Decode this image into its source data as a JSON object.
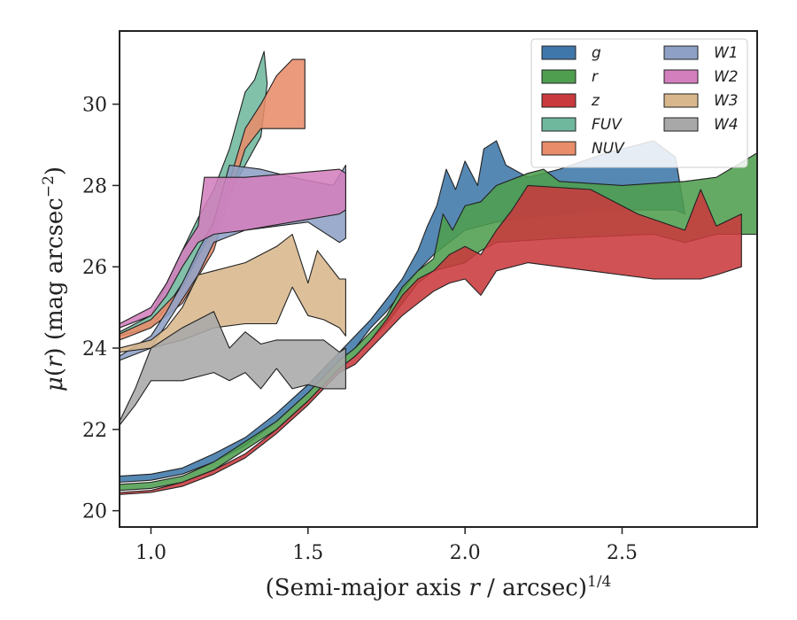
{
  "chart_data": {
    "type": "area",
    "xlabel": "(Semi-major axis r / arcsec)^{1/4}",
    "ylabel": "μ(r) (mag arcsec^{−2})",
    "xlim": [
      0.9,
      2.93
    ],
    "ylim": [
      31.8,
      19.6
    ],
    "y_inverted": true,
    "xticks": [
      1.0,
      1.5,
      2.0,
      2.5
    ],
    "xtick_labels": [
      "1.0",
      "1.5",
      "2.0",
      "2.5"
    ],
    "yticks": [
      20,
      22,
      24,
      26,
      28,
      30
    ],
    "ytick_labels": [
      "20",
      "22",
      "24",
      "26",
      "28",
      "30"
    ],
    "grid": false,
    "legend": {
      "position": "top-right",
      "columns": 2
    },
    "series": [
      {
        "name": "g",
        "color": "#3f77aa",
        "upper": [
          [
            0.9,
            20.7
          ],
          [
            1.0,
            20.75
          ],
          [
            1.1,
            20.9
          ],
          [
            1.2,
            21.2
          ],
          [
            1.3,
            21.6
          ],
          [
            1.4,
            22.2
          ],
          [
            1.5,
            22.9
          ],
          [
            1.55,
            23.3
          ],
          [
            1.6,
            23.7
          ],
          [
            1.65,
            24.0
          ],
          [
            1.7,
            24.5
          ],
          [
            1.75,
            24.9
          ],
          [
            1.8,
            25.4
          ],
          [
            1.85,
            25.9
          ],
          [
            1.9,
            26.3
          ],
          [
            1.95,
            26.6
          ],
          [
            2.0,
            26.9
          ],
          [
            2.1,
            27.1
          ],
          [
            2.2,
            27.2
          ],
          [
            2.3,
            27.3
          ],
          [
            2.5,
            27.4
          ],
          [
            2.67,
            27.4
          ]
        ],
        "lower": [
          [
            0.9,
            20.85
          ],
          [
            1.0,
            20.9
          ],
          [
            1.1,
            21.05
          ],
          [
            1.2,
            21.4
          ],
          [
            1.3,
            21.8
          ],
          [
            1.4,
            22.4
          ],
          [
            1.5,
            23.1
          ],
          [
            1.55,
            23.5
          ],
          [
            1.6,
            23.9
          ],
          [
            1.65,
            24.3
          ],
          [
            1.7,
            24.7
          ],
          [
            1.75,
            25.2
          ],
          [
            1.8,
            25.7
          ],
          [
            1.85,
            26.4
          ],
          [
            1.88,
            27.0
          ],
          [
            1.91,
            27.5
          ],
          [
            1.94,
            28.4
          ],
          [
            1.97,
            27.9
          ],
          [
            2.0,
            28.6
          ],
          [
            2.04,
            28.0
          ],
          [
            2.06,
            28.9
          ],
          [
            2.1,
            29.1
          ],
          [
            2.13,
            28.5
          ],
          [
            2.2,
            28.2
          ],
          [
            2.3,
            28.4
          ],
          [
            2.45,
            28.8
          ],
          [
            2.6,
            29.1
          ],
          [
            2.67,
            28.7
          ],
          [
            2.7,
            27.3
          ]
        ]
      },
      {
        "name": "r",
        "color": "#4f9e4f",
        "upper": [
          [
            0.9,
            20.5
          ],
          [
            1.0,
            20.55
          ],
          [
            1.1,
            20.7
          ],
          [
            1.2,
            21.0
          ],
          [
            1.3,
            21.5
          ],
          [
            1.4,
            22.0
          ],
          [
            1.5,
            22.7
          ],
          [
            1.55,
            23.1
          ],
          [
            1.6,
            23.5
          ],
          [
            1.65,
            23.8
          ],
          [
            1.7,
            24.2
          ],
          [
            1.75,
            24.6
          ],
          [
            1.8,
            25.1
          ],
          [
            1.85,
            25.6
          ],
          [
            1.9,
            25.9
          ],
          [
            1.95,
            26.0
          ],
          [
            2.0,
            26.1
          ],
          [
            2.05,
            26.4
          ],
          [
            2.1,
            26.6
          ],
          [
            2.3,
            26.7
          ],
          [
            2.6,
            26.8
          ],
          [
            2.7,
            26.6
          ],
          [
            2.8,
            26.8
          ],
          [
            2.93,
            26.8
          ]
        ],
        "lower": [
          [
            0.9,
            20.65
          ],
          [
            1.0,
            20.7
          ],
          [
            1.1,
            20.85
          ],
          [
            1.2,
            21.2
          ],
          [
            1.3,
            21.7
          ],
          [
            1.4,
            22.2
          ],
          [
            1.5,
            22.9
          ],
          [
            1.55,
            23.3
          ],
          [
            1.6,
            23.7
          ],
          [
            1.65,
            24.0
          ],
          [
            1.7,
            24.4
          ],
          [
            1.75,
            24.8
          ],
          [
            1.8,
            25.5
          ],
          [
            1.85,
            25.9
          ],
          [
            1.9,
            26.2
          ],
          [
            1.93,
            27.3
          ],
          [
            1.96,
            26.9
          ],
          [
            2.0,
            27.5
          ],
          [
            2.05,
            27.6
          ],
          [
            2.1,
            28.0
          ],
          [
            2.2,
            28.3
          ],
          [
            2.25,
            28.4
          ],
          [
            2.3,
            28.1
          ],
          [
            2.5,
            28.0
          ],
          [
            2.7,
            28.1
          ],
          [
            2.8,
            28.2
          ],
          [
            2.93,
            28.8
          ]
        ]
      },
      {
        "name": "z",
        "color": "#c93a3e",
        "upper": [
          [
            0.9,
            20.4
          ],
          [
            1.0,
            20.45
          ],
          [
            1.1,
            20.6
          ],
          [
            1.2,
            20.9
          ],
          [
            1.3,
            21.3
          ],
          [
            1.4,
            21.9
          ],
          [
            1.5,
            22.6
          ],
          [
            1.55,
            23.0
          ],
          [
            1.6,
            23.4
          ],
          [
            1.65,
            23.6
          ],
          [
            1.7,
            24.0
          ],
          [
            1.75,
            24.4
          ],
          [
            1.8,
            24.8
          ],
          [
            1.85,
            25.1
          ],
          [
            1.9,
            25.4
          ],
          [
            1.95,
            25.6
          ],
          [
            2.0,
            25.7
          ],
          [
            2.05,
            25.3
          ],
          [
            2.1,
            25.9
          ],
          [
            2.2,
            26.1
          ],
          [
            2.4,
            25.9
          ],
          [
            2.6,
            25.7
          ],
          [
            2.75,
            25.7
          ],
          [
            2.8,
            25.8
          ],
          [
            2.88,
            26.0
          ]
        ],
        "lower": [
          [
            0.9,
            20.45
          ],
          [
            1.0,
            20.5
          ],
          [
            1.1,
            20.7
          ],
          [
            1.2,
            21.0
          ],
          [
            1.3,
            21.4
          ],
          [
            1.4,
            22.0
          ],
          [
            1.5,
            22.7
          ],
          [
            1.55,
            23.1
          ],
          [
            1.6,
            23.5
          ],
          [
            1.65,
            23.8
          ],
          [
            1.7,
            24.2
          ],
          [
            1.75,
            24.7
          ],
          [
            1.8,
            25.3
          ],
          [
            1.85,
            25.7
          ],
          [
            1.9,
            25.9
          ],
          [
            1.95,
            26.3
          ],
          [
            2.0,
            26.5
          ],
          [
            2.05,
            26.3
          ],
          [
            2.1,
            26.9
          ],
          [
            2.15,
            27.4
          ],
          [
            2.2,
            28.0
          ],
          [
            2.4,
            27.9
          ],
          [
            2.55,
            27.3
          ],
          [
            2.7,
            26.9
          ],
          [
            2.75,
            27.9
          ],
          [
            2.8,
            27.0
          ],
          [
            2.88,
            27.3
          ]
        ]
      },
      {
        "name": "FUV",
        "color": "#6fb89e",
        "upper": [
          [
            0.9,
            24.3
          ],
          [
            1.0,
            24.5
          ],
          [
            1.05,
            25.0
          ],
          [
            1.1,
            25.6
          ],
          [
            1.15,
            26.3
          ],
          [
            1.2,
            26.8
          ],
          [
            1.25,
            27.8
          ],
          [
            1.3,
            28.5
          ],
          [
            1.35,
            29.2
          ],
          [
            1.37,
            30.5
          ]
        ],
        "lower": [
          [
            0.9,
            24.4
          ],
          [
            1.0,
            24.8
          ],
          [
            1.05,
            25.6
          ],
          [
            1.1,
            26.4
          ],
          [
            1.15,
            27.2
          ],
          [
            1.2,
            27.9
          ],
          [
            1.25,
            28.9
          ],
          [
            1.3,
            30.3
          ],
          [
            1.33,
            30.6
          ],
          [
            1.36,
            31.3
          ]
        ]
      },
      {
        "name": "NUV",
        "color": "#e88c6a",
        "upper": [
          [
            0.9,
            24.2
          ],
          [
            1.0,
            24.5
          ],
          [
            1.1,
            25.1
          ],
          [
            1.2,
            26.4
          ],
          [
            1.25,
            27.7
          ],
          [
            1.3,
            28.9
          ],
          [
            1.35,
            29.4
          ],
          [
            1.45,
            29.4
          ],
          [
            1.49,
            29.4
          ]
        ],
        "lower": [
          [
            0.9,
            24.35
          ],
          [
            1.0,
            24.7
          ],
          [
            1.1,
            25.5
          ],
          [
            1.2,
            27.0
          ],
          [
            1.25,
            28.1
          ],
          [
            1.3,
            29.4
          ],
          [
            1.35,
            30.0
          ],
          [
            1.4,
            30.7
          ],
          [
            1.45,
            31.1
          ],
          [
            1.49,
            31.1
          ]
        ]
      },
      {
        "name": "W1",
        "color": "#8ea0c6",
        "upper": [
          [
            0.9,
            23.7
          ],
          [
            1.0,
            24.0
          ],
          [
            1.05,
            24.6
          ],
          [
            1.1,
            25.2
          ],
          [
            1.15,
            25.8
          ],
          [
            1.2,
            26.6
          ],
          [
            1.3,
            26.9
          ],
          [
            1.4,
            27.0
          ],
          [
            1.5,
            27.1
          ],
          [
            1.6,
            26.6
          ],
          [
            1.62,
            26.7
          ]
        ],
        "lower": [
          [
            0.9,
            23.8
          ],
          [
            1.0,
            24.3
          ],
          [
            1.05,
            24.9
          ],
          [
            1.1,
            25.6
          ],
          [
            1.15,
            26.4
          ],
          [
            1.2,
            27.1
          ],
          [
            1.25,
            28.5
          ],
          [
            1.35,
            28.4
          ],
          [
            1.45,
            28.2
          ],
          [
            1.58,
            28.0
          ],
          [
            1.62,
            28.5
          ]
        ]
      },
      {
        "name": "W2",
        "color": "#d37fbd",
        "upper": [
          [
            0.9,
            24.5
          ],
          [
            1.0,
            24.8
          ],
          [
            1.05,
            25.3
          ],
          [
            1.1,
            26.0
          ],
          [
            1.15,
            26.6
          ],
          [
            1.2,
            26.8
          ],
          [
            1.3,
            26.9
          ],
          [
            1.45,
            27.1
          ],
          [
            1.6,
            27.3
          ],
          [
            1.62,
            27.4
          ]
        ],
        "lower": [
          [
            0.9,
            24.6
          ],
          [
            1.0,
            25.0
          ],
          [
            1.05,
            25.6
          ],
          [
            1.1,
            26.4
          ],
          [
            1.15,
            27.0
          ],
          [
            1.17,
            28.2
          ],
          [
            1.3,
            28.2
          ],
          [
            1.45,
            28.3
          ],
          [
            1.6,
            28.4
          ],
          [
            1.62,
            28.3
          ]
        ]
      },
      {
        "name": "W3",
        "color": "#d8b78c",
        "upper": [
          [
            0.9,
            23.9
          ],
          [
            1.0,
            24.0
          ],
          [
            1.05,
            24.1
          ],
          [
            1.1,
            24.2
          ],
          [
            1.2,
            24.5
          ],
          [
            1.3,
            24.6
          ],
          [
            1.4,
            24.6
          ],
          [
            1.45,
            25.5
          ],
          [
            1.5,
            24.8
          ],
          [
            1.55,
            24.7
          ],
          [
            1.6,
            24.5
          ],
          [
            1.62,
            24.3
          ]
        ],
        "lower": [
          [
            0.9,
            24.0
          ],
          [
            1.0,
            24.2
          ],
          [
            1.05,
            24.5
          ],
          [
            1.1,
            25.0
          ],
          [
            1.15,
            25.8
          ],
          [
            1.2,
            25.9
          ],
          [
            1.3,
            26.1
          ],
          [
            1.4,
            26.5
          ],
          [
            1.45,
            26.8
          ],
          [
            1.5,
            25.6
          ],
          [
            1.53,
            26.4
          ],
          [
            1.6,
            25.7
          ],
          [
            1.62,
            25.7
          ]
        ]
      },
      {
        "name": "W4",
        "color": "#a8a8a8",
        "upper": [
          [
            0.9,
            22.1
          ],
          [
            0.95,
            22.6
          ],
          [
            1.0,
            23.2
          ],
          [
            1.1,
            23.2
          ],
          [
            1.2,
            23.4
          ],
          [
            1.25,
            23.2
          ],
          [
            1.3,
            23.4
          ],
          [
            1.35,
            23.0
          ],
          [
            1.4,
            23.5
          ],
          [
            1.45,
            23.0
          ],
          [
            1.5,
            23.1
          ],
          [
            1.55,
            23.0
          ],
          [
            1.6,
            23.0
          ],
          [
            1.62,
            23.0
          ]
        ],
        "lower": [
          [
            0.9,
            22.2
          ],
          [
            0.95,
            23.0
          ],
          [
            1.0,
            24.0
          ],
          [
            1.1,
            24.5
          ],
          [
            1.2,
            24.9
          ],
          [
            1.25,
            24.0
          ],
          [
            1.3,
            24.4
          ],
          [
            1.35,
            24.1
          ],
          [
            1.4,
            24.2
          ],
          [
            1.45,
            24.2
          ],
          [
            1.5,
            24.2
          ],
          [
            1.55,
            24.2
          ],
          [
            1.6,
            23.9
          ],
          [
            1.62,
            24.0
          ]
        ]
      }
    ]
  }
}
